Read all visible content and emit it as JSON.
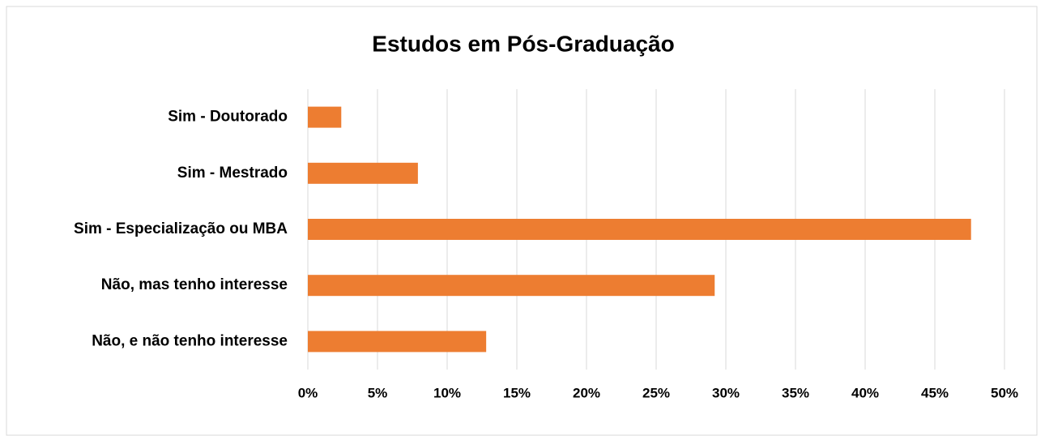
{
  "chart_data": {
    "type": "bar",
    "orientation": "horizontal",
    "title": "Estudos em Pós-Graduação",
    "categories": [
      "Sim - Doutorado",
      "Sim - Mestrado",
      "Sim - Especialização ou MBA",
      "Não, mas tenho interesse",
      "Não, e não tenho interesse"
    ],
    "values": [
      2.4,
      7.9,
      47.6,
      29.2,
      12.8
    ],
    "color": "#ed7d31",
    "xlim": [
      0,
      50
    ],
    "xticks": [
      {
        "value": 0,
        "label": "0%"
      },
      {
        "value": 5,
        "label": "5%"
      },
      {
        "value": 10,
        "label": "10%"
      },
      {
        "value": 15,
        "label": "15%"
      },
      {
        "value": 20,
        "label": "20%"
      },
      {
        "value": 25,
        "label": "25%"
      },
      {
        "value": 30,
        "label": "30%"
      },
      {
        "value": 35,
        "label": "35%"
      },
      {
        "value": 40,
        "label": "40%"
      },
      {
        "value": 45,
        "label": "45%"
      },
      {
        "value": 50,
        "label": "50%"
      }
    ],
    "grid": true
  }
}
